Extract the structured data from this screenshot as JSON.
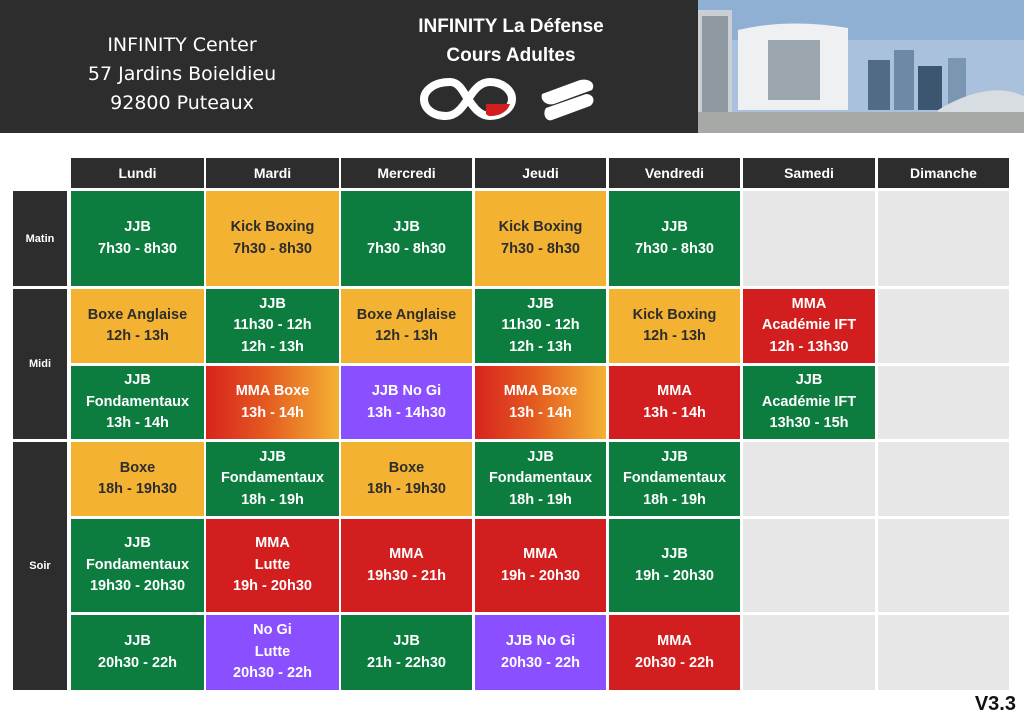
{
  "header": {
    "address": [
      "INFINITY Center",
      "57 Jardins Boieldieu",
      "92800 Puteaux"
    ],
    "title": [
      "INFINITY  La Défense",
      "Cours Adultes"
    ]
  },
  "days": [
    "Lundi",
    "Mardi",
    "Mercredi",
    "Jeudi",
    "Vendredi",
    "Samedi",
    "Dimanche"
  ],
  "periods": [
    "Matin",
    "Midi",
    "Soir"
  ],
  "schedule": {
    "matin": [
      [
        "JJB",
        "7h30 - 8h30"
      ],
      [
        "Kick Boxing",
        "7h30 - 8h30"
      ],
      [
        "JJB",
        "7h30 - 8h30"
      ],
      [
        "Kick Boxing",
        "7h30 - 8h30"
      ],
      [
        "JJB",
        "7h30 - 8h30"
      ]
    ],
    "midi1": [
      [
        "Boxe Anglaise",
        "12h - 13h"
      ],
      [
        "JJB",
        "11h30 - 12h",
        "12h - 13h"
      ],
      [
        "Boxe Anglaise",
        "12h - 13h"
      ],
      [
        "JJB",
        "11h30 - 12h",
        "12h - 13h"
      ],
      [
        "Kick Boxing",
        "12h - 13h"
      ],
      [
        "MMA",
        "Académie IFT",
        "12h - 13h30"
      ]
    ],
    "midi2": [
      [
        "JJB",
        "Fondamentaux",
        "13h - 14h"
      ],
      [
        "MMA Boxe",
        "13h - 14h"
      ],
      [
        "JJB No Gi",
        "13h - 14h30"
      ],
      [
        "MMA Boxe",
        "13h - 14h"
      ],
      [
        "MMA",
        "13h - 14h"
      ],
      [
        "JJB",
        "Académie IFT",
        "13h30 - 15h"
      ]
    ],
    "soir1": [
      [
        "Boxe",
        "18h - 19h30"
      ],
      [
        "JJB",
        "Fondamentaux",
        "18h - 19h"
      ],
      [
        "Boxe",
        "18h - 19h30"
      ],
      [
        "JJB",
        "Fondamentaux",
        "18h - 19h"
      ],
      [
        "JJB",
        "Fondamentaux",
        "18h - 19h"
      ]
    ],
    "soir2": [
      [
        "JJB",
        "Fondamentaux",
        "19h30 - 20h30"
      ],
      [
        "MMA",
        "Lutte",
        "19h - 20h30"
      ],
      [
        "MMA",
        "19h30 - 21h"
      ],
      [
        "MMA",
        "19h - 20h30"
      ],
      [
        "JJB",
        "19h - 20h30"
      ]
    ],
    "soir3": [
      [
        "JJB",
        "20h30 - 22h"
      ],
      [
        "No Gi",
        "Lutte",
        "20h30 - 22h"
      ],
      [
        "JJB",
        "21h - 22h30"
      ],
      [
        "JJB No Gi",
        "20h30 - 22h"
      ],
      [
        "MMA",
        "20h30 - 22h"
      ]
    ]
  },
  "colors": {
    "green": "#0c7d3f",
    "orange": "#f4b233",
    "red": "#d21e1e",
    "purple": "#8a4fff",
    "empty": "#e7e7e7",
    "dark": "#2d2d2d"
  },
  "version": "V3.3"
}
